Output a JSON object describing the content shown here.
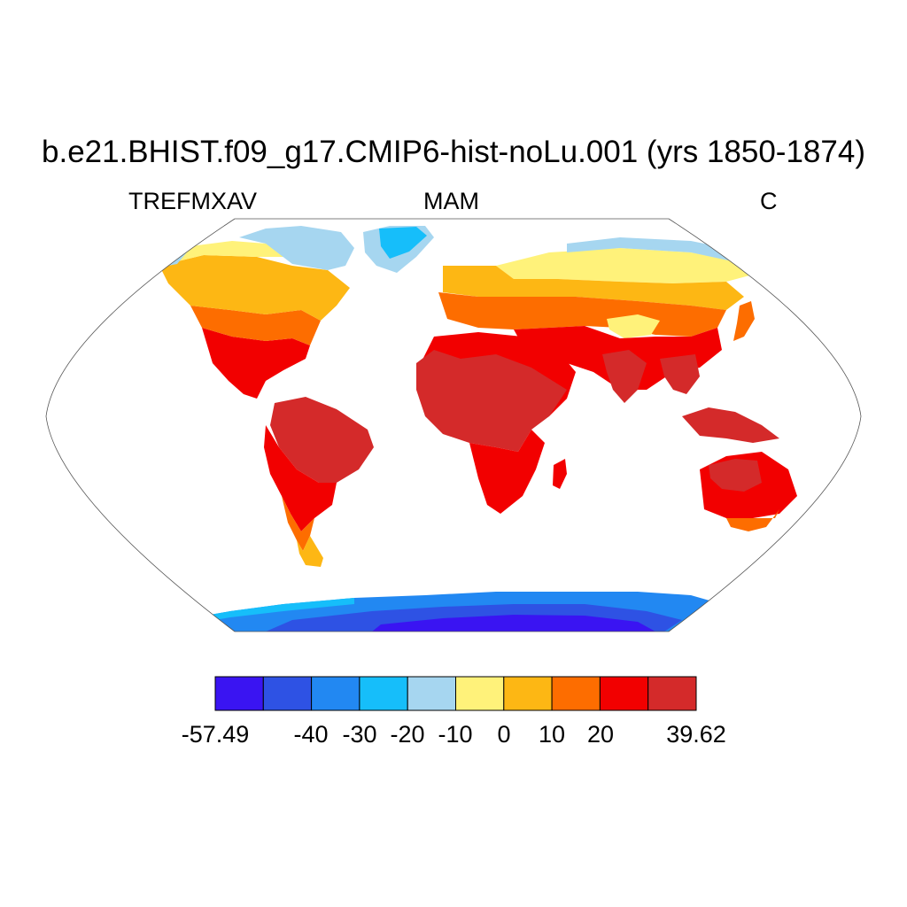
{
  "title": "b.e21.BHIST.f09_g17.CMIP6-hist-noLu.001 (yrs 1850-1874)",
  "left_label": "TREFMXAV",
  "center_label": "MAM",
  "right_label": "C",
  "colorbar": {
    "colors": [
      "#3a14f2",
      "#2e52e4",
      "#2288f2",
      "#16befa",
      "#a6d6f0",
      "#fff27a",
      "#fdb714",
      "#fd6d00",
      "#f20000",
      "#d42a2a"
    ],
    "tick_labels": [
      "-57.49",
      "-40",
      "-30",
      "-20",
      "-10",
      "0",
      "10",
      "20",
      "39.62"
    ]
  },
  "map": {
    "projection": "Robinson",
    "colors": {
      "tropical": "#d42a2a",
      "warm": "#f20000",
      "mild": "#fd6d00",
      "temperate": "#fdb714",
      "cool": "#fff27a",
      "cold": "#a6d6f0",
      "very_cold": "#16befa",
      "polar": "#2288f2",
      "deep_polar": "#2e52e4",
      "extreme": "#3a14f2"
    }
  }
}
